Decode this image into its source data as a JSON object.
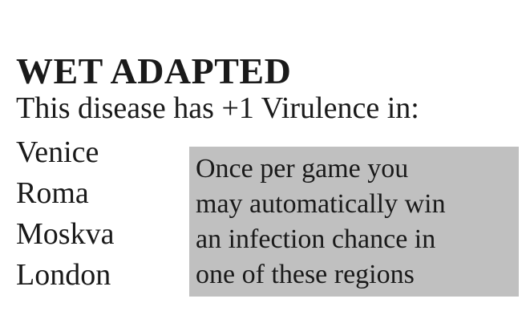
{
  "card": {
    "title": "WET ADAPTED",
    "subtitle": "This disease has +1 Virulence in:",
    "regions": [
      "Venice",
      "Roma",
      "Moskva",
      "London"
    ],
    "ability": {
      "lines": [
        "Once per game you",
        "may automatically win",
        "an infection chance in",
        "one of these regions"
      ],
      "background": "#c0c0c0"
    }
  }
}
